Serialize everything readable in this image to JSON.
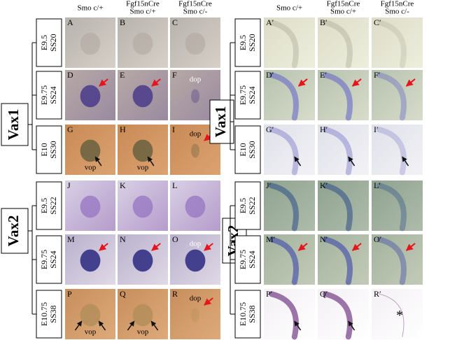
{
  "left": {
    "columns": [
      [
        "Smo c/+"
      ],
      [
        "Fgf15nCre",
        "Smo c/+"
      ],
      [
        "Fgf15nCre",
        "Smo c/-"
      ]
    ],
    "genes": [
      "Vax1",
      "Vax2"
    ],
    "rows": [
      {
        "stage": [
          "E9.5",
          "SS20"
        ],
        "panels": [
          {
            "letter": "A"
          },
          {
            "letter": "B"
          },
          {
            "letter": "C"
          }
        ]
      },
      {
        "stage": [
          "E9.75",
          "SS24"
        ],
        "panels": [
          {
            "letter": "D"
          },
          {
            "letter": "E"
          },
          {
            "letter": "F",
            "notes": [
              "dop"
            ]
          }
        ]
      },
      {
        "stage": [
          "E10",
          "SS30"
        ],
        "panels": [
          {
            "letter": "G",
            "notes": [
              "vop"
            ]
          },
          {
            "letter": "H",
            "notes": [
              "vop"
            ]
          },
          {
            "letter": "I",
            "notes": [
              "dop"
            ]
          }
        ]
      },
      {
        "stage": [
          "E9.5",
          "SS22"
        ],
        "panels": [
          {
            "letter": "J"
          },
          {
            "letter": "K"
          },
          {
            "letter": "L"
          }
        ]
      },
      {
        "stage": [
          "E9.75",
          "SS24"
        ],
        "panels": [
          {
            "letter": "M"
          },
          {
            "letter": "N"
          },
          {
            "letter": "O",
            "notes": [
              "dop"
            ]
          }
        ]
      },
      {
        "stage": [
          "E10.75",
          "SS38"
        ],
        "panels": [
          {
            "letter": "P",
            "notes": [
              "vop"
            ]
          },
          {
            "letter": "Q",
            "notes": [
              "vop"
            ]
          },
          {
            "letter": "R",
            "notes": [
              "dop"
            ]
          }
        ]
      }
    ]
  },
  "right": {
    "columns": [
      [
        "Smo c/+"
      ],
      [
        "Fgf15nCre",
        "Smo c/+"
      ],
      [
        "Fgf15nCre",
        "Smo c/-"
      ]
    ],
    "genes": [
      "Vax1",
      "Vax2"
    ],
    "rows": [
      {
        "stage": [
          "E9.5",
          "SS20"
        ],
        "panels": [
          {
            "letter": "A′"
          },
          {
            "letter": "B′"
          },
          {
            "letter": "C′"
          }
        ]
      },
      {
        "stage": [
          "E9.75",
          "SS24"
        ],
        "panels": [
          {
            "letter": "D′"
          },
          {
            "letter": "E′"
          },
          {
            "letter": "F′"
          }
        ]
      },
      {
        "stage": [
          "E10",
          "SS30"
        ],
        "panels": [
          {
            "letter": "G′"
          },
          {
            "letter": "H′"
          },
          {
            "letter": "I′"
          }
        ]
      },
      {
        "stage": [
          "E9.5",
          "SS22"
        ],
        "panels": [
          {
            "letter": "J′"
          },
          {
            "letter": "K′"
          },
          {
            "letter": "L′"
          }
        ]
      },
      {
        "stage": [
          "E9.75",
          "SS24"
        ],
        "panels": [
          {
            "letter": "M′"
          },
          {
            "letter": "N′"
          },
          {
            "letter": "O′"
          }
        ]
      },
      {
        "stage": [
          "E10.75",
          "SS38"
        ],
        "panels": [
          {
            "letter": "P′"
          },
          {
            "letter": "Q′"
          },
          {
            "letter": "R′",
            "notes": [
              "*"
            ]
          }
        ]
      }
    ]
  }
}
